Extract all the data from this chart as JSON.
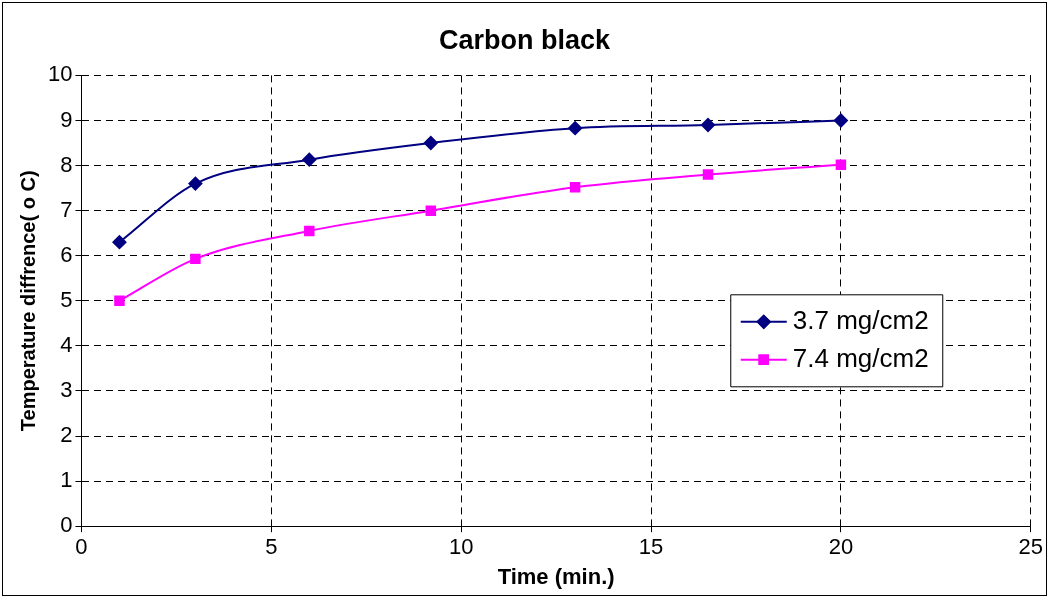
{
  "chart_data": {
    "type": "line",
    "title": "Carbon black",
    "xlabel": "Time (min.)",
    "ylabel": "Temperature diffrence( o C)",
    "x": [
      1,
      3,
      6,
      9.2,
      13,
      16.5,
      20
    ],
    "series": [
      {
        "name": "3.7 mg/cm2",
        "color": "#000080",
        "marker": "diamond",
        "values": [
          6.3,
          7.6,
          8.13,
          8.5,
          8.83,
          8.9,
          9.0
        ]
      },
      {
        "name": "7.4 mg/cm2",
        "color": "#ff00ff",
        "marker": "square",
        "values": [
          5.0,
          5.93,
          6.55,
          7.0,
          7.52,
          7.8,
          8.02
        ]
      }
    ],
    "xlim": [
      0,
      25
    ],
    "xticks": [
      0,
      5,
      10,
      15,
      20,
      25
    ],
    "ylim": [
      0,
      10
    ],
    "yticks": [
      0,
      1,
      2,
      3,
      4,
      5,
      6,
      7,
      8,
      9,
      10
    ],
    "grid": true,
    "legend": "right",
    "line_style": "solid"
  }
}
